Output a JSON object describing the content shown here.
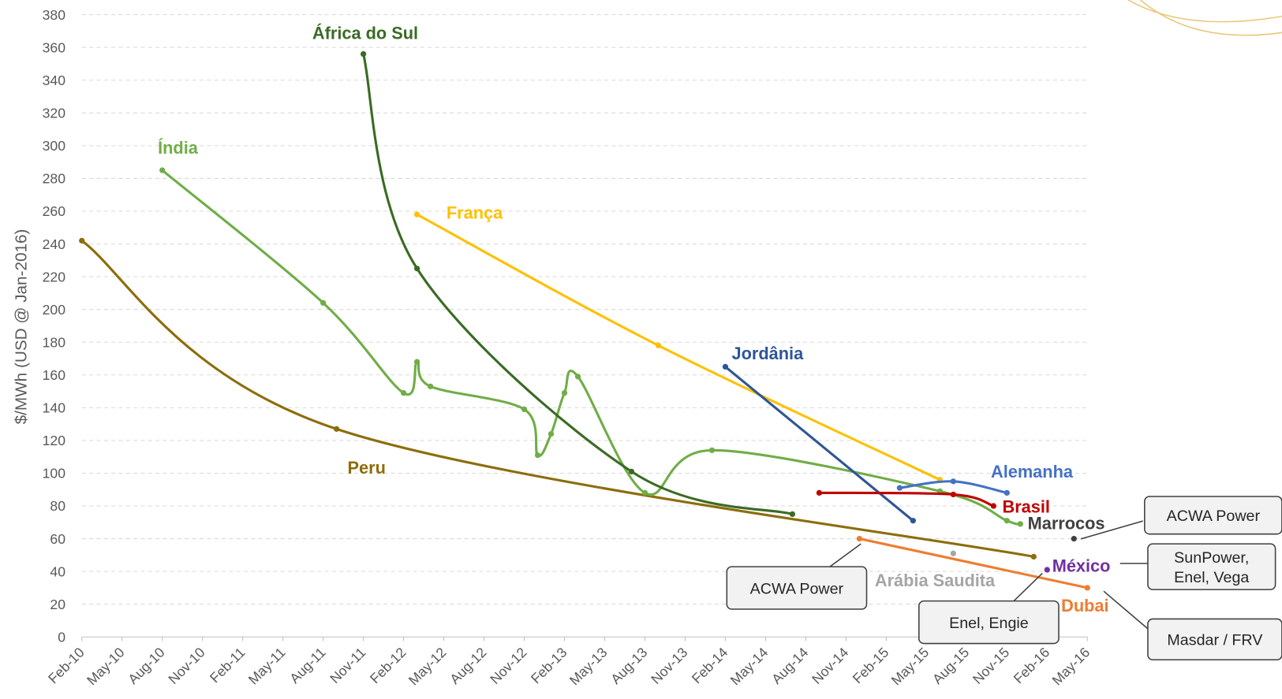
{
  "chart_data": {
    "type": "line",
    "smooth": true,
    "grid": true,
    "y_label": "$/MWh (USD @ Jan-2016)",
    "xlim": [
      "Feb-10",
      "May-16"
    ],
    "xticks": [
      "Feb-10",
      "May-10",
      "Aug-10",
      "Nov-10",
      "Feb-11",
      "May-11",
      "Aug-11",
      "Nov-11",
      "Feb-12",
      "May-12",
      "Aug-12",
      "Nov-12",
      "Feb-13",
      "May-13",
      "Aug-13",
      "Nov-13",
      "Feb-14",
      "May-14",
      "Aug-14",
      "Nov-14",
      "Feb-15",
      "May-15",
      "Aug-15",
      "Nov-15",
      "Feb-16",
      "May-16"
    ],
    "ylim": [
      0,
      380
    ],
    "yticks": [
      0,
      20,
      40,
      60,
      80,
      100,
      120,
      140,
      160,
      180,
      200,
      220,
      240,
      260,
      280,
      300,
      320,
      340,
      360,
      380
    ],
    "series": [
      {
        "name": "Peru",
        "color": "#8c6d0a",
        "x": [
          "Feb-10",
          "Sep-11",
          "Jan-16"
        ],
        "values": [
          242,
          127,
          49
        ]
      },
      {
        "name": "Índia",
        "color": "#70ad47",
        "x": [
          "Aug-10",
          "Aug-11",
          "Feb-12",
          "Mar-12",
          "Apr-12",
          "Nov-12",
          "Dec-12",
          "Jan-13",
          "Feb-13",
          "Mar-13",
          "Aug-13",
          "Jan-14",
          "Jun-15",
          "Nov-15",
          "Dec-15"
        ],
        "values": [
          285,
          204,
          149,
          168,
          153,
          139,
          111,
          124,
          149,
          159,
          88,
          114,
          89,
          71,
          69
        ]
      },
      {
        "name": "África do Sul",
        "color": "#3a6b24",
        "x": [
          "Nov-11",
          "Mar-12",
          "Jul-13",
          "Jul-14"
        ],
        "values": [
          356,
          225,
          101,
          75
        ]
      },
      {
        "name": "França",
        "color": "#ffc000",
        "x": [
          "Mar-12",
          "Sep-13",
          "Jun-15"
        ],
        "values": [
          258,
          178,
          96
        ]
      },
      {
        "name": "Jordânia",
        "color": "#2f5597",
        "x": [
          "Feb-14",
          "Apr-15"
        ],
        "values": [
          165,
          71
        ]
      },
      {
        "name": "Alemanha",
        "color": "#4472c4",
        "x": [
          "Mar-15",
          "Jul-15",
          "Nov-15"
        ],
        "values": [
          91,
          95,
          88
        ]
      },
      {
        "name": "Brasil",
        "color": "#c00000",
        "x": [
          "Sep-14",
          "Jul-15",
          "Oct-15"
        ],
        "values": [
          88,
          87,
          80
        ]
      },
      {
        "name": "Marrocos",
        "color": "#404040",
        "x": [
          "Apr-16"
        ],
        "values": [
          60
        ]
      },
      {
        "name": "Arábia Saudita",
        "color": "#a5a5a5",
        "x": [
          "Jul-15"
        ],
        "values": [
          51
        ]
      },
      {
        "name": "México",
        "color": "#7030a0",
        "x": [
          "Feb-16"
        ],
        "values": [
          41
        ]
      },
      {
        "name": "Dubai",
        "color": "#ed7d31",
        "x": [
          "Dec-14",
          "May-16"
        ],
        "values": [
          60,
          30
        ]
      }
    ],
    "annotations": [
      {
        "lines": [
          "ACWA Power"
        ]
      },
      {
        "lines": [
          "SunPower,",
          "Enel, Vega"
        ]
      },
      {
        "lines": [
          "Masdar / FRV"
        ]
      },
      {
        "lines": [
          "ACWA Power"
        ]
      },
      {
        "lines": [
          "Enel, Engie"
        ]
      }
    ]
  }
}
